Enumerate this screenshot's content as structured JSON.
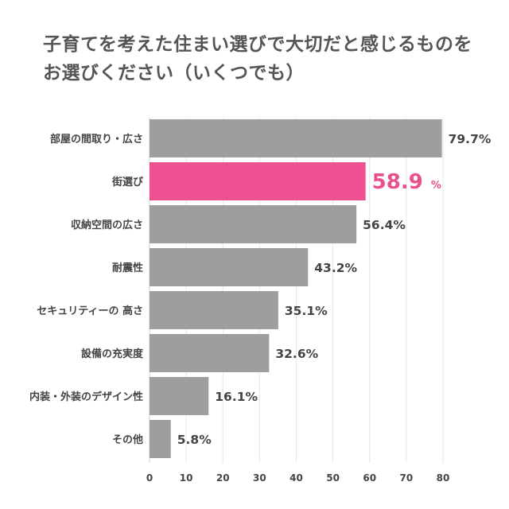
{
  "title": {
    "line1": "子育てを考えた住まい選びで大切だと感じるものを",
    "line2": "お選びください（いくつでも）"
  },
  "colors": {
    "bar": "#9e9e9e",
    "highlight": "#ee5193",
    "highlight_text": "#e8508e",
    "grid": "#e6e6e6"
  },
  "chart_data": {
    "type": "bar",
    "orientation": "horizontal",
    "title": "子育てを考えた住まい選びで大切だと感じるものをお選びください（いくつでも）",
    "categories": [
      "部屋の間取り・広さ",
      "街選び",
      "収納空間の広さ",
      "耐震性",
      "セキュリティーの 高さ",
      "設備の充実度",
      "内装・外装のデザイン性",
      "その他"
    ],
    "values": [
      79.7,
      58.9,
      56.4,
      43.2,
      35.1,
      32.6,
      16.1,
      5.8
    ],
    "value_labels": [
      "79.7%",
      "58.9",
      "56.4%",
      "43.2%",
      "35.1%",
      "32.6%",
      "16.1%",
      "5.8%"
    ],
    "highlight_index": 1,
    "highlight_unit": "%",
    "xlim": [
      0,
      80
    ],
    "xticks": [
      0,
      10,
      20,
      30,
      40,
      50,
      60,
      70,
      80
    ],
    "xlabel": "",
    "ylabel": "",
    "grid": true,
    "unit": "%"
  }
}
